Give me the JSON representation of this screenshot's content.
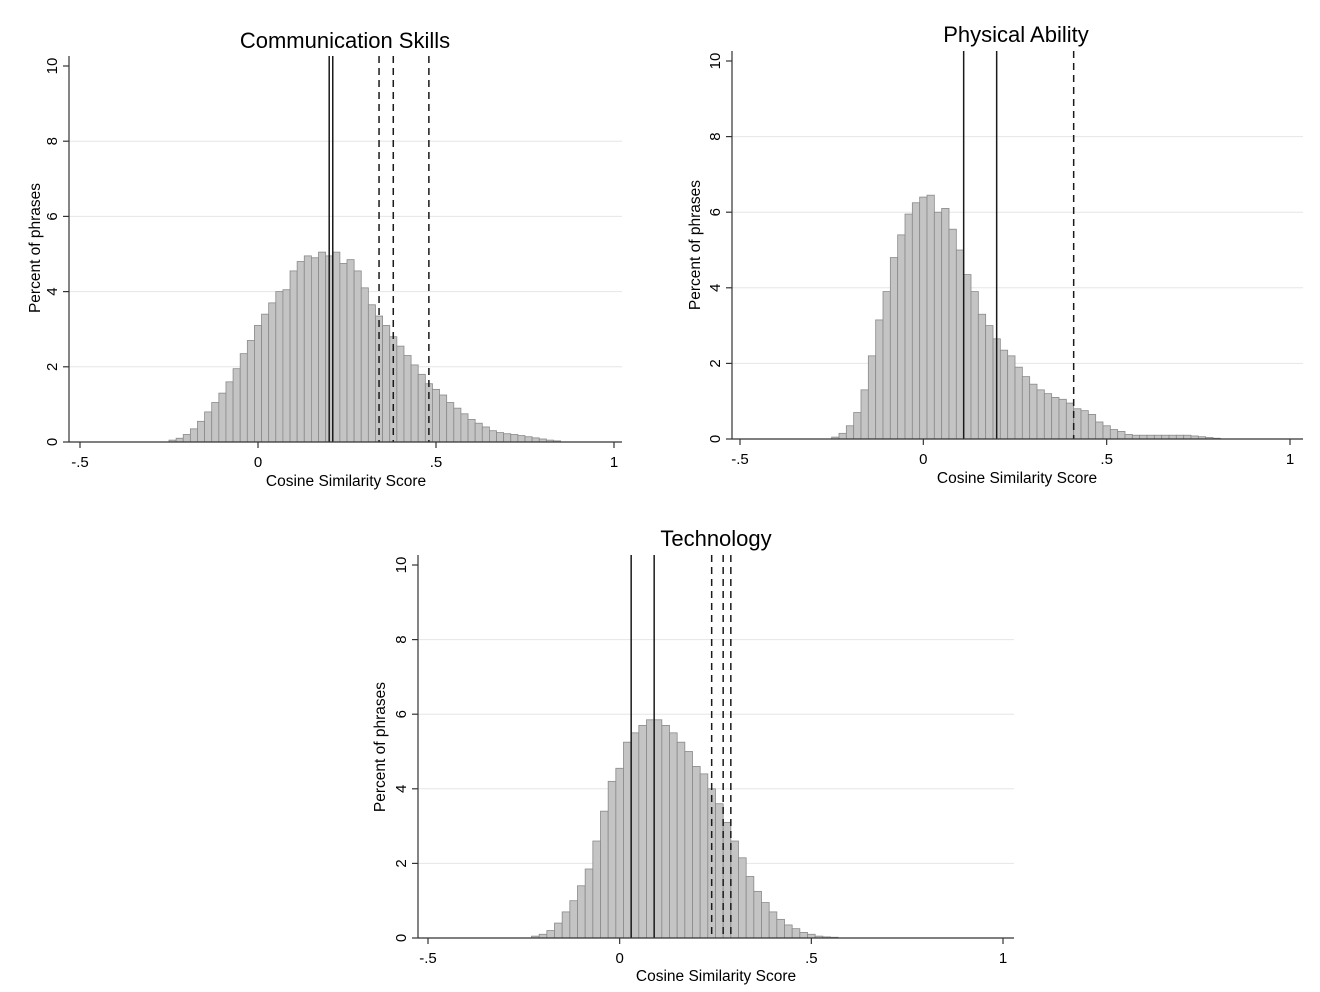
{
  "chart_data": [
    {
      "type": "bar",
      "title": "Communication Skills",
      "xlabel": "Cosine Similarity Score",
      "ylabel": "Percent of phrases",
      "xlim": [
        -0.5,
        1
      ],
      "ylim": [
        0,
        10
      ],
      "xticks": [
        {
          "value": -0.5,
          "label": "-.5"
        },
        {
          "value": 0,
          "label": "0"
        },
        {
          "value": 0.5,
          "label": ".5"
        },
        {
          "value": 1,
          "label": "1"
        }
      ],
      "yticks": [
        {
          "value": 0,
          "label": "0"
        },
        {
          "value": 2,
          "label": "2"
        },
        {
          "value": 4,
          "label": "4"
        },
        {
          "value": 6,
          "label": "6"
        },
        {
          "value": 8,
          "label": "8"
        },
        {
          "value": 10,
          "label": "10"
        }
      ],
      "grid": true,
      "bin_start": -0.25,
      "bin_width": 0.02,
      "values": [
        0.05,
        0.1,
        0.2,
        0.35,
        0.55,
        0.8,
        1.05,
        1.3,
        1.6,
        1.95,
        2.35,
        2.7,
        3.1,
        3.4,
        3.7,
        4.0,
        4.05,
        4.55,
        4.8,
        4.95,
        4.9,
        5.05,
        4.95,
        5.05,
        4.75,
        4.85,
        4.55,
        4.1,
        3.65,
        3.35,
        3.1,
        2.8,
        2.55,
        2.3,
        2.05,
        1.8,
        1.55,
        1.4,
        1.25,
        1.05,
        0.9,
        0.75,
        0.6,
        0.5,
        0.4,
        0.3,
        0.25,
        0.22,
        0.2,
        0.17,
        0.14,
        0.11,
        0.08,
        0.05,
        0.03
      ],
      "vlines": [
        {
          "x": 0.2,
          "style": "solid"
        },
        {
          "x": 0.21,
          "style": "solid"
        },
        {
          "x": 0.34,
          "style": "dashed"
        },
        {
          "x": 0.38,
          "style": "dashed"
        },
        {
          "x": 0.48,
          "style": "dashed"
        }
      ]
    },
    {
      "type": "bar",
      "title": "Physical Ability",
      "xlabel": "Cosine Similarity Score",
      "ylabel": "Percent of phrases",
      "xlim": [
        -0.5,
        1
      ],
      "ylim": [
        0,
        10
      ],
      "xticks": [
        {
          "value": -0.5,
          "label": "-.5"
        },
        {
          "value": 0,
          "label": "0"
        },
        {
          "value": 0.5,
          "label": ".5"
        },
        {
          "value": 1,
          "label": "1"
        }
      ],
      "yticks": [
        {
          "value": 0,
          "label": "0"
        },
        {
          "value": 2,
          "label": "2"
        },
        {
          "value": 4,
          "label": "4"
        },
        {
          "value": 6,
          "label": "6"
        },
        {
          "value": 8,
          "label": "8"
        },
        {
          "value": 10,
          "label": "10"
        }
      ],
      "grid": true,
      "bin_start": -0.25,
      "bin_width": 0.02,
      "values": [
        0.05,
        0.15,
        0.35,
        0.7,
        1.3,
        2.2,
        3.15,
        3.9,
        4.8,
        5.4,
        5.95,
        6.25,
        6.4,
        6.45,
        6.0,
        6.1,
        5.55,
        5.0,
        4.35,
        3.9,
        3.3,
        3.0,
        2.65,
        2.35,
        2.2,
        1.9,
        1.65,
        1.45,
        1.3,
        1.2,
        1.1,
        1.05,
        0.95,
        0.8,
        0.75,
        0.65,
        0.45,
        0.35,
        0.25,
        0.2,
        0.12,
        0.1,
        0.1,
        0.1,
        0.1,
        0.1,
        0.1,
        0.1,
        0.1,
        0.08,
        0.06,
        0.04,
        0.02
      ],
      "vlines": [
        {
          "x": 0.11,
          "style": "solid"
        },
        {
          "x": 0.2,
          "style": "solid"
        },
        {
          "x": 0.41,
          "style": "dashed"
        }
      ]
    },
    {
      "type": "bar",
      "title": "Technology",
      "xlabel": "Cosine Similarity Score",
      "ylabel": "Percent of phrases",
      "xlim": [
        -0.5,
        1
      ],
      "ylim": [
        0,
        10
      ],
      "xticks": [
        {
          "value": -0.5,
          "label": "-.5"
        },
        {
          "value": 0,
          "label": "0"
        },
        {
          "value": 0.5,
          "label": ".5"
        },
        {
          "value": 1,
          "label": "1"
        }
      ],
      "yticks": [
        {
          "value": 0,
          "label": "0"
        },
        {
          "value": 2,
          "label": "2"
        },
        {
          "value": 4,
          "label": "4"
        },
        {
          "value": 6,
          "label": "6"
        },
        {
          "value": 8,
          "label": "8"
        },
        {
          "value": 10,
          "label": "10"
        }
      ],
      "grid": true,
      "bin_start": -0.23,
      "bin_width": 0.02,
      "values": [
        0.05,
        0.1,
        0.2,
        0.4,
        0.7,
        1.0,
        1.4,
        1.85,
        2.6,
        3.4,
        4.2,
        4.55,
        5.25,
        5.5,
        5.7,
        5.85,
        5.85,
        5.7,
        5.5,
        5.25,
        5.0,
        4.6,
        4.4,
        4.0,
        3.6,
        3.1,
        2.6,
        2.15,
        1.65,
        1.25,
        0.95,
        0.7,
        0.5,
        0.35,
        0.25,
        0.15,
        0.1,
        0.05,
        0.03,
        0.02
      ],
      "vlines": [
        {
          "x": 0.03,
          "style": "solid"
        },
        {
          "x": 0.09,
          "style": "solid"
        },
        {
          "x": 0.24,
          "style": "dashed"
        },
        {
          "x": 0.27,
          "style": "dashed"
        },
        {
          "x": 0.29,
          "style": "dashed"
        }
      ]
    }
  ]
}
